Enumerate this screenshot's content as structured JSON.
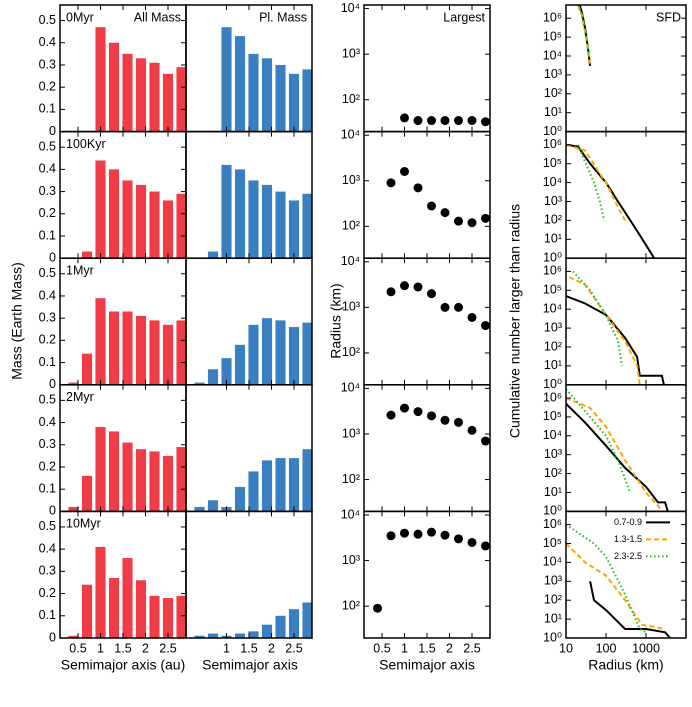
{
  "chart_data": [
    {
      "type": "bar",
      "title": "All Mass",
      "x_label": "Semimajor axis (au)",
      "y_label": "Mass (Earth Mass)",
      "color": "#f03c46",
      "x": [
        0.4,
        0.7,
        1.0,
        1.3,
        1.6,
        1.9,
        2.2,
        2.5,
        2.8
      ],
      "xlim": [
        0.1,
        2.9
      ],
      "xticks": [
        0.5,
        1,
        1.5,
        2,
        2.5
      ],
      "ylim": [
        0,
        0.57
      ],
      "yticks": [
        0,
        0.1,
        0.2,
        0.3,
        0.4,
        0.5
      ],
      "panels": [
        {
          "label": "0Myr",
          "values": [
            null,
            null,
            0.47,
            0.4,
            0.35,
            0.33,
            0.31,
            0.26,
            0.29
          ]
        },
        {
          "label": "100Kyr",
          "values": [
            null,
            0.03,
            0.44,
            0.4,
            0.35,
            0.33,
            0.3,
            0.26,
            0.29
          ]
        },
        {
          "label": "1Myr",
          "values": [
            0.01,
            0.14,
            0.39,
            0.33,
            0.33,
            0.31,
            0.29,
            0.27,
            0.29
          ]
        },
        {
          "label": "2Myr",
          "values": [
            0.02,
            0.16,
            0.38,
            0.36,
            0.31,
            0.28,
            0.27,
            0.25,
            0.29
          ]
        },
        {
          "label": "10Myr",
          "values": [
            0.01,
            0.24,
            0.41,
            0.27,
            0.36,
            0.26,
            0.19,
            0.18,
            0.19
          ]
        }
      ]
    },
    {
      "type": "bar",
      "title": "Pl. Mass",
      "x_label": "Semimajor axis",
      "color": "#3a7fc1",
      "x": [
        0.4,
        0.7,
        1.0,
        1.3,
        1.6,
        1.9,
        2.2,
        2.5,
        2.8
      ],
      "xlim": [
        0.1,
        2.9
      ],
      "xticks": [
        1,
        1.5,
        2,
        2.5
      ],
      "ylim": [
        0,
        0.57
      ],
      "panels": [
        {
          "values": [
            null,
            null,
            0.47,
            0.43,
            0.35,
            0.33,
            0.3,
            0.26,
            0.28
          ]
        },
        {
          "values": [
            null,
            0.03,
            0.42,
            0.4,
            0.35,
            0.33,
            0.3,
            0.26,
            0.29
          ]
        },
        {
          "values": [
            0.01,
            0.07,
            0.12,
            0.18,
            0.27,
            0.3,
            0.29,
            0.26,
            0.28
          ]
        },
        {
          "values": [
            0.02,
            0.05,
            0.02,
            0.11,
            0.18,
            0.23,
            0.24,
            0.24,
            0.28
          ]
        },
        {
          "values": [
            0.01,
            0.02,
            0.01,
            0.02,
            0.03,
            0.06,
            0.1,
            0.13,
            0.16
          ]
        }
      ]
    },
    {
      "type": "scatter",
      "title": "Largest",
      "x_label": "Semimajor axis",
      "y_label": "Radius (km)",
      "color": "#000000",
      "log_y": true,
      "x": [
        0.4,
        0.7,
        1.0,
        1.3,
        1.6,
        1.9,
        2.2,
        2.5,
        2.8
      ],
      "xlim": [
        0.1,
        2.9
      ],
      "xticks": [
        0.5,
        1,
        1.5,
        2,
        2.5
      ],
      "ylim": [
        20,
        12000
      ],
      "yticks": [
        {
          "value": 100,
          "label": "10²"
        },
        {
          "value": 1000,
          "label": "10³"
        },
        {
          "value": 10000,
          "label": "10⁴"
        }
      ],
      "panels": [
        {
          "values": [
            null,
            null,
            40,
            35,
            35,
            35,
            35,
            35,
            33
          ]
        },
        {
          "values": [
            null,
            900,
            1600,
            700,
            280,
            200,
            130,
            120,
            150
          ]
        },
        {
          "values": [
            null,
            2200,
            3000,
            2800,
            2000,
            1000,
            1000,
            600,
            400
          ]
        },
        {
          "values": [
            null,
            2600,
            3700,
            3100,
            2500,
            2000,
            1800,
            1200,
            700
          ]
        },
        {
          "values": [
            90,
            3500,
            4000,
            3800,
            4200,
            3600,
            3000,
            2500,
            2100
          ]
        }
      ]
    },
    {
      "type": "line",
      "title": "SFD",
      "x_label": "Radius (km)",
      "y_label": "Cumulative number larger than radius",
      "log_x": true,
      "log_y": true,
      "legend": "upper right",
      "xlim": [
        10,
        10000
      ],
      "xticks": [
        10,
        100,
        1000
      ],
      "ylim": [
        1,
        5000000
      ],
      "yticks": [
        {
          "value": 1,
          "label": "10⁰"
        },
        {
          "value": 10,
          "label": "10¹"
        },
        {
          "value": 100,
          "label": "10²"
        },
        {
          "value": 1000,
          "label": "10³"
        },
        {
          "value": 10000,
          "label": "10⁴"
        },
        {
          "value": 100000,
          "label": "10⁵"
        },
        {
          "value": 1000000,
          "label": "10⁶"
        }
      ],
      "series": [
        {
          "name": "0.7-0.9",
          "color": "#000000",
          "dash": "solid"
        },
        {
          "name": "1.3-1.5",
          "color": "#ffa500",
          "dash": "dashed"
        },
        {
          "name": "2.3-2.5",
          "color": "#22bb22",
          "dash": "dotted"
        }
      ],
      "panels": [
        {
          "series": [
            {
              "x": [
                22,
                25,
                30,
                35,
                40
              ],
              "values": [
                5000000,
                2000000,
                300000,
                30000,
                3000
              ]
            },
            {
              "x": [
                20,
                25,
                30,
                35,
                40
              ],
              "values": [
                5000000,
                1500000,
                200000,
                30000,
                4000
              ]
            },
            {
              "x": [
                20,
                25,
                30,
                35,
                38
              ],
              "values": [
                5000000,
                1500000,
                200000,
                40000,
                8000
              ]
            }
          ]
        },
        {
          "series": [
            {
              "x": [
                10,
                20,
                40,
                100,
                200,
                500,
                1000,
                1600
              ],
              "values": [
                1000000,
                800000,
                100000,
                10000,
                1000,
                50,
                5,
                1
              ]
            },
            {
              "x": [
                10,
                30,
                60,
                100,
                200,
                300
              ],
              "values": [
                1000000,
                500000,
                50000,
                10000,
                500,
                100
              ]
            },
            {
              "x": [
                20,
                40,
                50,
                70,
                90
              ],
              "values": [
                1000000,
                30000,
                10000,
                1000,
                100
              ]
            }
          ]
        },
        {
          "series": [
            {
              "x": [
                10,
                30,
                100,
                300,
                600,
                700,
                2500,
                2800
              ],
              "values": [
                50000,
                20000,
                5000,
                300,
                30,
                3,
                3,
                1
              ]
            },
            {
              "x": [
                12,
                30,
                100,
                300,
                600,
                700
              ],
              "values": [
                500000,
                200000,
                5000,
                200,
                10,
                1
              ]
            },
            {
              "x": [
                15,
                40,
                100,
                200,
                250
              ],
              "values": [
                1000000,
                100000,
                5000,
                200,
                10
              ]
            }
          ]
        },
        {
          "series": [
            {
              "x": [
                10,
                30,
                100,
                300,
                1000,
                2000,
                3000,
                3500
              ],
              "values": [
                500000,
                50000,
                3000,
                200,
                20,
                3,
                3,
                1
              ]
            },
            {
              "x": [
                10,
                40,
                100,
                300,
                1000,
                2000,
                2500
              ],
              "values": [
                1000000,
                300000,
                30000,
                500,
                10,
                2,
                1
              ]
            },
            {
              "x": [
                10,
                30,
                100,
                200,
                400
              ],
              "values": [
                3000000,
                200000,
                10000,
                500,
                10
              ]
            }
          ]
        },
        {
          "series": [
            {
              "x": [
                40,
                50,
                100,
                300,
                1000,
                3000,
                4000
              ],
              "values": [
                1000,
                100,
                30,
                3,
                3,
                2,
                1
              ]
            },
            {
              "x": [
                10,
                30,
                100,
                300,
                800,
                3000
              ],
              "values": [
                100000,
                10000,
                2000,
                100,
                5,
                3
              ]
            },
            {
              "x": [
                10,
                50,
                100,
                300,
                700,
                1000
              ],
              "values": [
                1000000,
                100000,
                20000,
                200,
                3,
                2
              ]
            }
          ]
        }
      ]
    }
  ]
}
